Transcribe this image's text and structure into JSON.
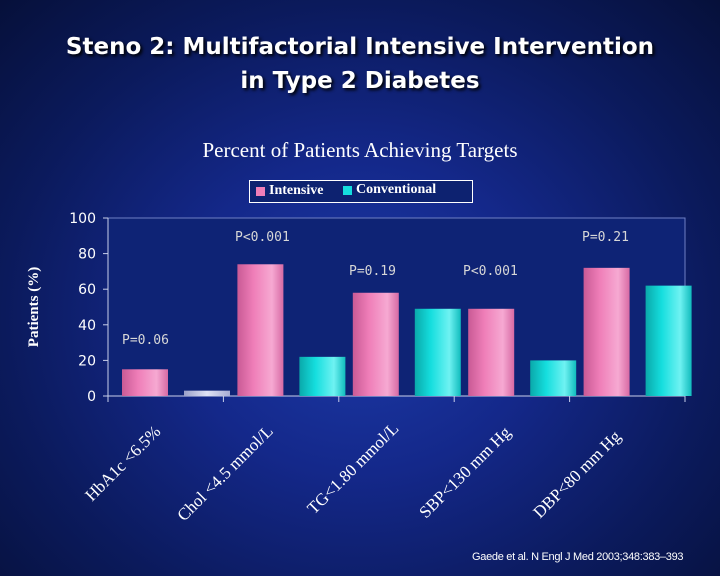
{
  "slide": {
    "title_line1": "Steno 2: Multifactorial Intensive Intervention",
    "title_line2": "in Type 2 Diabetes",
    "subtitle": "Percent of Patients Achieving Targets",
    "footnote": "Gaede et al. N Engl J Med 2003;348:383–393"
  },
  "legend": {
    "intensive": "Intensive",
    "conventional": "Conventional"
  },
  "colors": {
    "intensive": "#ef7eb8",
    "conventional": "#15dede",
    "axis_text": "#ffffff",
    "pvalue_text": "#d7d7d7"
  },
  "chart_data": {
    "type": "bar",
    "ylabel": "Patients (%)",
    "ylim": [
      0,
      100
    ],
    "yticks": [
      0,
      20,
      40,
      60,
      80,
      100
    ],
    "categories": [
      "HbA1c <6.5%",
      "Chol <4.5 mmol/L",
      "TG<1.80 mmol/L",
      "SBP<130 mm Hg",
      "DBP<80 mm Hg"
    ],
    "series": [
      {
        "name": "Intensive",
        "values": [
          15,
          74,
          58,
          49,
          72
        ]
      },
      {
        "name": "Conventional",
        "values": [
          3,
          22,
          49,
          20,
          62
        ]
      }
    ],
    "annotations": [
      "P=0.06",
      "P<0.001",
      "P=0.19",
      "P<0.001",
      "P=0.21"
    ],
    "legend_position": "top-center",
    "grid": false
  }
}
